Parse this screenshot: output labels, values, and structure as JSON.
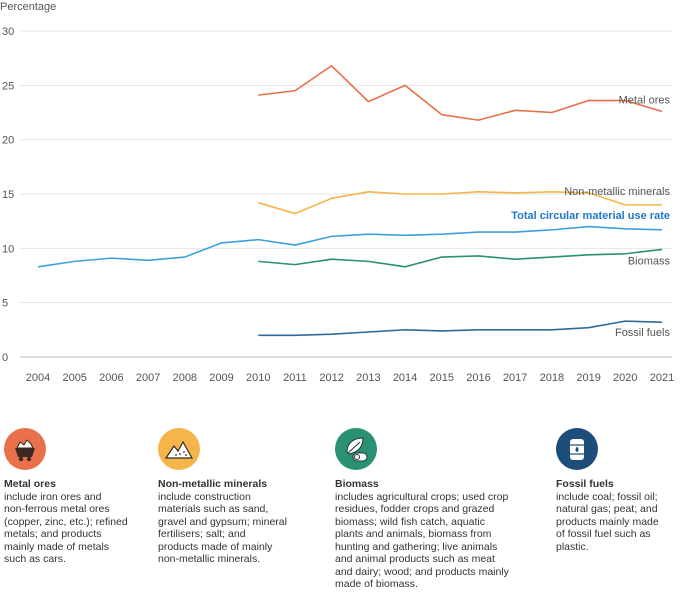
{
  "chart_data": {
    "type": "line",
    "ylabel": "Percentage",
    "ylim": [
      0,
      30
    ],
    "yticks": [
      0,
      5,
      10,
      15,
      20,
      25,
      30
    ],
    "x": [
      2004,
      2005,
      2006,
      2007,
      2008,
      2009,
      2010,
      2011,
      2012,
      2013,
      2014,
      2015,
      2016,
      2017,
      2018,
      2019,
      2020,
      2021
    ],
    "grid": "horizontal",
    "series": [
      {
        "name": "Metal ores",
        "color": "#e8704a",
        "label_color": "#555555",
        "x": [
          2010,
          2011,
          2012,
          2013,
          2014,
          2015,
          2016,
          2017,
          2018,
          2019,
          2020,
          2021
        ],
        "values": [
          24.1,
          24.5,
          26.8,
          23.5,
          25.0,
          22.3,
          21.8,
          22.7,
          22.5,
          23.6,
          23.6,
          22.6
        ]
      },
      {
        "name": "Non-metallic minerals",
        "color": "#f5b54a",
        "label_color": "#555555",
        "x": [
          2010,
          2011,
          2012,
          2013,
          2014,
          2015,
          2016,
          2017,
          2018,
          2019,
          2020,
          2021
        ],
        "values": [
          14.2,
          13.2,
          14.6,
          15.2,
          15.0,
          15.0,
          15.2,
          15.1,
          15.2,
          15.1,
          14.0,
          14.0
        ]
      },
      {
        "name": "Total circular material use rate",
        "color": "#3f9fdc",
        "label_color": "#1f78c8",
        "bold": true,
        "x": [
          2004,
          2005,
          2006,
          2007,
          2008,
          2009,
          2010,
          2011,
          2012,
          2013,
          2014,
          2015,
          2016,
          2017,
          2018,
          2019,
          2020,
          2021
        ],
        "values": [
          8.3,
          8.8,
          9.1,
          8.9,
          9.2,
          10.5,
          10.8,
          10.3,
          11.1,
          11.3,
          11.2,
          11.3,
          11.5,
          11.5,
          11.7,
          12.0,
          11.8,
          11.7
        ]
      },
      {
        "name": "Biomass",
        "color": "#2a9174",
        "label_color": "#555555",
        "x": [
          2010,
          2011,
          2012,
          2013,
          2014,
          2015,
          2016,
          2017,
          2018,
          2019,
          2020,
          2021
        ],
        "values": [
          8.8,
          8.5,
          9.0,
          8.8,
          8.3,
          9.2,
          9.3,
          9.0,
          9.2,
          9.4,
          9.5,
          9.9
        ]
      },
      {
        "name": "Fossil fuels",
        "color": "#2e6b96",
        "label_color": "#555555",
        "x": [
          2010,
          2011,
          2012,
          2013,
          2014,
          2015,
          2016,
          2017,
          2018,
          2019,
          2020,
          2021
        ],
        "values": [
          2.0,
          2.0,
          2.1,
          2.3,
          2.5,
          2.4,
          2.5,
          2.5,
          2.5,
          2.7,
          3.3,
          3.2
        ]
      }
    ]
  },
  "legend": [
    {
      "title": "Metal ores",
      "icon": "mine-cart-icon",
      "color": "#e8704a",
      "lines": [
        "include iron ores and",
        "non-ferrous metal ores",
        "(copper, zinc, etc.); refined",
        "metals; and products",
        "mainly made of metals",
        "such as cars."
      ]
    },
    {
      "title": "Non-metallic minerals",
      "icon": "mineral-pile-icon",
      "color": "#f5b54a",
      "lines": [
        "include construction",
        "materials such as sand,",
        "gravel and gypsum; mineral",
        "fertilisers; salt; and",
        "products made of mainly",
        "non-metallic minerals."
      ]
    },
    {
      "title": "Biomass",
      "icon": "leaf-log-icon",
      "color": "#2a9174",
      "lines": [
        "includes agricultural crops; used crop",
        "residues, fodder crops and grazed",
        "biomass; wild fish catch, aquatic",
        "plants and animals, biomass from",
        "hunting and gathering; live animals",
        "and animal products such as meat",
        "and dairy; wood; and products mainly",
        "made of biomass."
      ]
    },
    {
      "title": "Fossil fuels",
      "icon": "oil-barrel-icon",
      "color": "#1d4e7a",
      "lines": [
        "include coal; fossil oil;",
        "natural gas; peat; and",
        "products mainly made",
        "of fossil fuel such as",
        "plastic."
      ]
    }
  ]
}
